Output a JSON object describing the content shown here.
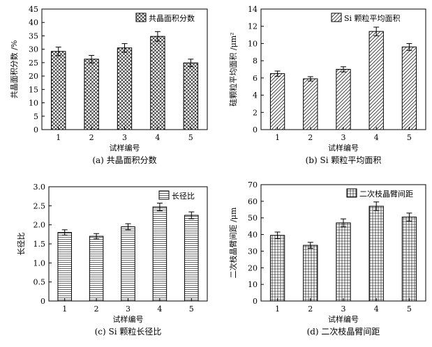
{
  "chart_data": [
    {
      "id": "a",
      "type": "bar",
      "categories": [
        "1",
        "2",
        "3",
        "4",
        "5"
      ],
      "series": [
        {
          "name": "共晶面积分数",
          "values": [
            29.2,
            26.3,
            30.5,
            34.8,
            24.9
          ],
          "errors": [
            1.6,
            1.4,
            1.6,
            1.8,
            1.4
          ]
        }
      ],
      "ylim": [
        0,
        45
      ],
      "yticks": [
        0,
        5,
        10,
        15,
        20,
        25,
        30,
        35,
        40,
        45
      ],
      "xlabel": "试样编号",
      "ylabel": "共晶面积分数 /%",
      "caption": "(a) 共晶面积分数",
      "legend": "top-right",
      "pattern": "crosshatch"
    },
    {
      "id": "b",
      "type": "bar",
      "categories": [
        "1",
        "2",
        "3",
        "4",
        "5"
      ],
      "series": [
        {
          "name": "Si 颗粒平均面积",
          "values": [
            6.5,
            5.9,
            7.0,
            11.4,
            9.6
          ],
          "errors": [
            0.3,
            0.25,
            0.3,
            0.5,
            0.4
          ]
        }
      ],
      "ylim": [
        0,
        14
      ],
      "yticks": [
        0,
        2,
        4,
        6,
        8,
        10,
        12,
        14
      ],
      "xlabel": "试样编号",
      "ylabel": "硅颗粒平均面积 /μm²",
      "caption": "(b) Si 颗粒平均面积",
      "legend": "top-right",
      "pattern": "diagonal"
    },
    {
      "id": "c",
      "type": "bar",
      "categories": [
        "1",
        "2",
        "3",
        "4",
        "5"
      ],
      "series": [
        {
          "name": "长径比",
          "values": [
            1.8,
            1.7,
            1.95,
            2.47,
            2.25
          ],
          "errors": [
            0.07,
            0.07,
            0.08,
            0.1,
            0.09
          ]
        }
      ],
      "ylim": [
        0,
        3.0
      ],
      "yticks": [
        "0",
        "0.5",
        "1.0",
        "1.5",
        "2.0",
        "2.5",
        "3.0"
      ],
      "xlabel": "试样编号",
      "ylabel": "长径比",
      "caption": "(c) Si 颗粒长径比",
      "legend": "top-right",
      "pattern": "horizontal"
    },
    {
      "id": "d",
      "type": "bar",
      "categories": [
        "1",
        "2",
        "3",
        "4",
        "5"
      ],
      "series": [
        {
          "name": "二次枝晶臂间距",
          "values": [
            39.5,
            33.5,
            47.0,
            57.0,
            50.5
          ],
          "errors": [
            2.0,
            1.8,
            2.4,
            2.6,
            2.4
          ]
        }
      ],
      "ylim": [
        0,
        70
      ],
      "yticks": [
        0,
        10,
        20,
        30,
        40,
        50,
        60,
        70
      ],
      "xlabel": "试样编号",
      "ylabel": "二次枝晶臂间距 /μm",
      "caption": "(d) 二次枝晶臂间距",
      "legend": "top-right",
      "pattern": "grid"
    }
  ]
}
